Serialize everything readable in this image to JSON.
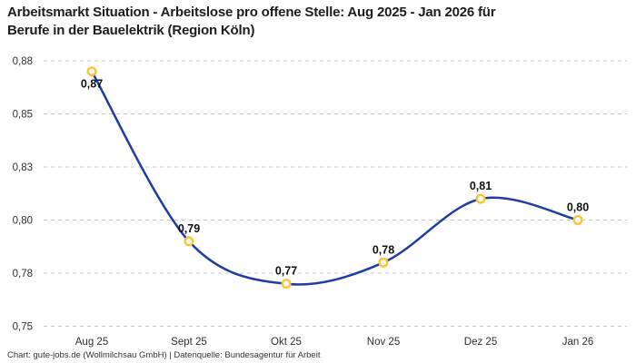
{
  "header": {
    "title_lines": [
      "Arbeitsmarkt Situation - Arbeitslose pro offene Stelle: Aug 2025 - Jan 2026 für",
      "Berufe in der Bauelektrik (Region Köln)"
    ]
  },
  "footer": {
    "credit": "Chart: gute-jobs.de (Wollmilchsau GmbH) | Datenquelle: Bundesagentur für Arbeit"
  },
  "chart_data": {
    "type": "line",
    "title": "Arbeitsmarkt Situation - Arbeitslose pro offene Stelle: Aug 2025 - Jan 2026 für Berufe in der Bauelektrik (Region Köln)",
    "xlabel": "",
    "ylabel": "",
    "categories": [
      "Aug 25",
      "Sept 25",
      "Okt 25",
      "Nov 25",
      "Dez 25",
      "Jan 26"
    ],
    "series": [
      {
        "name": "Arbeitslose pro offene Stelle",
        "values": [
          0.87,
          0.79,
          0.77,
          0.78,
          0.81,
          0.8
        ],
        "point_labels": [
          "0,87",
          "0,79",
          "0,77",
          "0,78",
          "0,81",
          "0,80"
        ],
        "label_placement": [
          "below",
          "above",
          "above",
          "above",
          "above",
          "above"
        ]
      }
    ],
    "y_ticks": [
      {
        "value": 0.875,
        "label": "0,88"
      },
      {
        "value": 0.85,
        "label": "0,85"
      },
      {
        "value": 0.825,
        "label": "0,83"
      },
      {
        "value": 0.8,
        "label": "0,80"
      },
      {
        "value": 0.775,
        "label": "0,78"
      },
      {
        "value": 0.75,
        "label": "0,75"
      }
    ],
    "ylim": [
      0.75,
      0.875
    ],
    "grid": "horizontal-dashed",
    "legend_position": "none",
    "line_style": "smooth",
    "colors": {
      "line": "#1e3ba6",
      "marker_ring": "#fcc430",
      "marker_fill": "#ffffff",
      "grid": "#c9c9c9",
      "point_label": "#111111",
      "tick_label": "#2e2e2e",
      "title": "#1d1d1d",
      "footer": "#333333"
    }
  }
}
